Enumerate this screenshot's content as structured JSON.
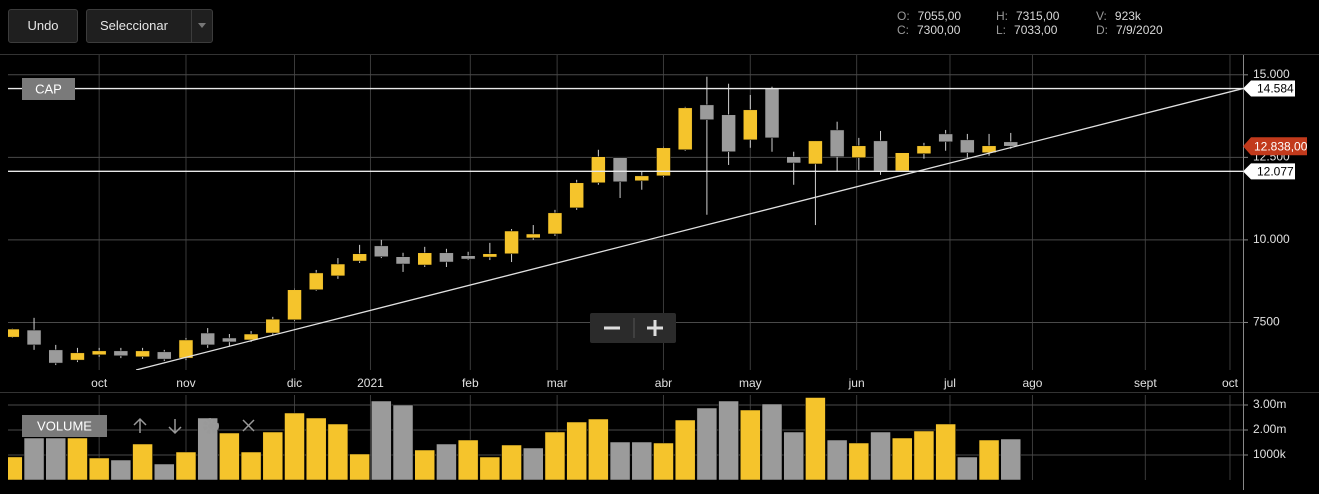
{
  "toolbar": {
    "undo": "Undo",
    "select": "Seleccionar"
  },
  "ohlc_info": [
    {
      "label": "O:",
      "value": "7055,00"
    },
    {
      "label": "C:",
      "value": "7300,00"
    },
    {
      "label": "H:",
      "value": "7315,00"
    },
    {
      "label": "L:",
      "value": "7033,00"
    },
    {
      "label": "V:",
      "value": "923k"
    },
    {
      "label": "D:",
      "value": "7/9/2020"
    }
  ],
  "chart_data": [
    {
      "type": "candlestick",
      "panel_label": "CAP",
      "categories": [
        null,
        null,
        null,
        null,
        null,
        null,
        null,
        null,
        null,
        null,
        null,
        null,
        null,
        null,
        null,
        null,
        null,
        null,
        null,
        null,
        null,
        null,
        null,
        null,
        null,
        null,
        null,
        null,
        null,
        null,
        null,
        null,
        null,
        null,
        null,
        null,
        null,
        null,
        null,
        null,
        null,
        null,
        null,
        null,
        null,
        null,
        null
      ],
      "open": [
        7055,
        7270,
        6670,
        6360,
        6520,
        6640,
        6460,
        6610,
        6420,
        7180,
        7030,
        6970,
        7180,
        7580,
        8490,
        8910,
        9360,
        9820,
        9490,
        9240,
        9610,
        9520,
        9480,
        9580,
        10060,
        10180,
        10970,
        11730,
        12490,
        11790,
        11940,
        12730,
        14090,
        13790,
        13030,
        14580,
        12520,
        12300,
        13330,
        12490,
        13000,
        12090,
        12610,
        13210,
        13030,
        12640,
        12970
      ],
      "high": [
        7315,
        7640,
        6820,
        6730,
        6730,
        6730,
        6730,
        6670,
        7030,
        7330,
        7150,
        7240,
        7670,
        8520,
        9090,
        9450,
        9850,
        10000,
        9610,
        9790,
        9730,
        9640,
        9910,
        10330,
        10450,
        10910,
        11820,
        12730,
        12490,
        12090,
        12820,
        14030,
        14940,
        14730,
        14390,
        14640,
        12670,
        13000,
        13580,
        13090,
        13300,
        12640,
        12940,
        13330,
        13210,
        13210,
        13240
      ],
      "low": [
        7033,
        6670,
        6210,
        6300,
        6460,
        6420,
        6400,
        6330,
        6360,
        6730,
        6790,
        6910,
        7120,
        7550,
        8460,
        8820,
        9300,
        9450,
        9030,
        9180,
        9180,
        9390,
        9390,
        9330,
        10000,
        10120,
        10910,
        11670,
        11270,
        11520,
        11900,
        12700,
        10760,
        12270,
        12790,
        12670,
        11670,
        10450,
        12090,
        12120,
        11970,
        12060,
        12460,
        12700,
        12490,
        12550,
        12760
      ],
      "close": [
        7300,
        6820,
        6270,
        6580,
        6640,
        6490,
        6640,
        6390,
        6970,
        6820,
        6910,
        7150,
        7600,
        8490,
        9000,
        9270,
        9580,
        9490,
        9270,
        9610,
        9330,
        9420,
        9580,
        10270,
        10180,
        10820,
        11730,
        12520,
        11760,
        11940,
        12790,
        14000,
        13640,
        12670,
        13940,
        13090,
        12330,
        13000,
        12520,
        12850,
        12090,
        12640,
        12850,
        12970,
        12640,
        12850,
        12838
      ],
      "up_color": "#f5c42c",
      "down_color": "#9b9b9b",
      "xlim": [
        -0.2,
        56.7
      ],
      "xticks": [
        {
          "value": 4.0,
          "label": "oct"
        },
        {
          "value": 8.0,
          "label": "nov"
        },
        {
          "value": 13.0,
          "label": "dic"
        },
        {
          "value": 16.5,
          "label": "2021"
        },
        {
          "value": 21.1,
          "label": "feb"
        },
        {
          "value": 25.1,
          "label": "mar"
        },
        {
          "value": 30.0,
          "label": "abr"
        },
        {
          "value": 34.0,
          "label": "may"
        },
        {
          "value": 38.9,
          "label": "jun"
        },
        {
          "value": 43.2,
          "label": "jul"
        },
        {
          "value": 47.0,
          "label": "ago"
        },
        {
          "value": 52.2,
          "label": "sept"
        },
        {
          "value": 56.1,
          "label": "oct"
        }
      ],
      "ylim": [
        6060,
        15600
      ],
      "yticks": [
        {
          "value": 15000,
          "label": "15.000"
        },
        {
          "value": 12500,
          "label": "12.500"
        },
        {
          "value": 10000,
          "label": "10.000"
        },
        7500
      ],
      "grid": true,
      "trendline": {
        "x": [
          5.7,
          56.7
        ],
        "y": [
          6060,
          14584
        ]
      },
      "hlines": [
        {
          "value": 14584,
          "label": "14.584"
        },
        {
          "value": 12077,
          "label": "12.077"
        }
      ],
      "last_price": {
        "value": 12838,
        "label": "12.838,00",
        "color": "#c23a1c"
      }
    },
    {
      "type": "bar",
      "panel_label": "VOLUME",
      "values": [
        923000,
        1680000,
        1680000,
        1680000,
        880000,
        800000,
        1440000,
        640000,
        1120000,
        2480000,
        1880000,
        1120000,
        1920000,
        2680000,
        2480000,
        2240000,
        1040000,
        3160000,
        3000000,
        1200000,
        1440000,
        1600000,
        920000,
        1400000,
        1280000,
        1920000,
        2320000,
        2440000,
        1520000,
        1520000,
        1480000,
        2400000,
        2880000,
        3160000,
        2800000,
        3040000,
        1920000,
        3300000,
        1600000,
        1480000,
        1920000,
        1680000,
        1960000,
        2240000,
        920000,
        1600000,
        1640000
      ],
      "colors": [
        "#f5c42c",
        "#9b9b9b",
        "#9b9b9b",
        "#f5c42c",
        "#f5c42c",
        "#9b9b9b",
        "#f5c42c",
        "#9b9b9b",
        "#f5c42c",
        "#9b9b9b",
        "#f5c42c",
        "#f5c42c",
        "#f5c42c",
        "#f5c42c",
        "#f5c42c",
        "#f5c42c",
        "#f5c42c",
        "#9b9b9b",
        "#9b9b9b",
        "#f5c42c",
        "#9b9b9b",
        "#f5c42c",
        "#f5c42c",
        "#f5c42c",
        "#9b9b9b",
        "#f5c42c",
        "#f5c42c",
        "#f5c42c",
        "#9b9b9b",
        "#9b9b9b",
        "#f5c42c",
        "#f5c42c",
        "#9b9b9b",
        "#9b9b9b",
        "#f5c42c",
        "#9b9b9b",
        "#9b9b9b",
        "#f5c42c",
        "#9b9b9b",
        "#f5c42c",
        "#9b9b9b",
        "#f5c42c",
        "#f5c42c",
        "#f5c42c",
        "#9b9b9b",
        "#f5c42c",
        "#9b9b9b"
      ],
      "xlim": [
        -0.2,
        56.7
      ],
      "ylim": [
        0,
        3400000
      ],
      "yticks": [
        {
          "value": 3000000,
          "label": "3.00m"
        },
        {
          "value": 2000000,
          "label": "2.00m"
        },
        {
          "value": 1000000,
          "label": "1000k"
        }
      ]
    }
  ]
}
